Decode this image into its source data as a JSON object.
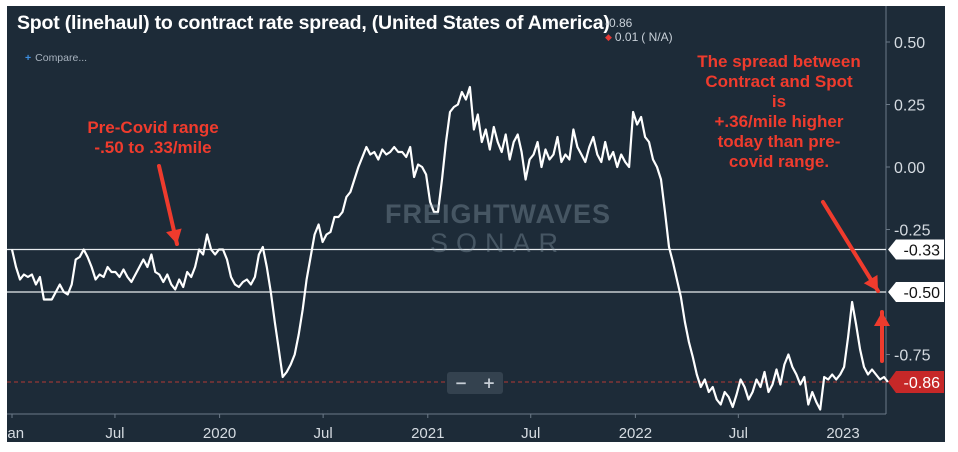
{
  "title": "Spot (linehaul) to contract rate spread, (United States of America)",
  "last_value": "-0.86",
  "change": "0.01",
  "change_pct": "( N/A)",
  "compare_label": "Compare...",
  "watermark": {
    "line1": "FREIGHTWAVES",
    "line2": "SONAR"
  },
  "zoom": {
    "minus": "−",
    "plus": "+"
  },
  "annotations": {
    "left": [
      "Pre-Covid range",
      "-.50 to .33/mile"
    ],
    "right": [
      "The spread between",
      "Contract and Spot",
      "is",
      "+.36/mile higher",
      "today than pre-",
      "covid range."
    ]
  },
  "colors": {
    "background": "#1d2b38",
    "line": "#ffffff",
    "annotation": "#ef3b2d",
    "last_value_tag": "#c62828"
  },
  "chart_data": {
    "type": "line",
    "title": "Spot (linehaul) to contract rate spread, (United States of America)",
    "xlabel": "",
    "ylabel": "",
    "x_ticks": [
      "Jan",
      "Jul",
      "2020",
      "Jul",
      "2021",
      "Jul",
      "2022",
      "Jul",
      "2023"
    ],
    "x_range": [
      "2019-01-01",
      "2023-05-15"
    ],
    "y_ticks": [
      "0.50",
      "0.25",
      "0.00",
      "-0.25",
      "-0.75"
    ],
    "ylim": [
      -1.0,
      0.6
    ],
    "grid": false,
    "reference_lines": [
      {
        "value": -0.33,
        "label": "-0.33"
      },
      {
        "value": -0.5,
        "label": "-0.50"
      }
    ],
    "last_value_line": {
      "value": -0.86,
      "label": "-0.86"
    },
    "series": [
      {
        "values": [
          [
            "2019-01-01",
            -0.33
          ],
          [
            "2019-01-08",
            -0.4
          ],
          [
            "2019-01-15",
            -0.45
          ],
          [
            "2019-01-22",
            -0.43
          ],
          [
            "2019-01-29",
            -0.44
          ],
          [
            "2019-02-05",
            -0.43
          ],
          [
            "2019-02-12",
            -0.47
          ],
          [
            "2019-02-19",
            -0.44
          ],
          [
            "2019-02-26",
            -0.53
          ],
          [
            "2019-03-05",
            -0.53
          ],
          [
            "2019-03-12",
            -0.53
          ],
          [
            "2019-03-19",
            -0.5
          ],
          [
            "2019-03-26",
            -0.47
          ],
          [
            "2019-04-02",
            -0.5
          ],
          [
            "2019-04-09",
            -0.51
          ],
          [
            "2019-04-16",
            -0.47
          ],
          [
            "2019-04-23",
            -0.37
          ],
          [
            "2019-04-30",
            -0.36
          ],
          [
            "2019-05-07",
            -0.33
          ],
          [
            "2019-05-14",
            -0.36
          ],
          [
            "2019-05-21",
            -0.4
          ],
          [
            "2019-05-28",
            -0.45
          ],
          [
            "2019-06-04",
            -0.43
          ],
          [
            "2019-06-11",
            -0.44
          ],
          [
            "2019-06-18",
            -0.4
          ],
          [
            "2019-06-25",
            -0.42
          ],
          [
            "2019-07-02",
            -0.42
          ],
          [
            "2019-07-09",
            -0.44
          ],
          [
            "2019-07-16",
            -0.41
          ],
          [
            "2019-07-23",
            -0.44
          ],
          [
            "2019-07-30",
            -0.46
          ],
          [
            "2019-08-06",
            -0.43
          ],
          [
            "2019-08-13",
            -0.4
          ],
          [
            "2019-08-20",
            -0.37
          ],
          [
            "2019-08-27",
            -0.4
          ],
          [
            "2019-09-03",
            -0.35
          ],
          [
            "2019-09-10",
            -0.42
          ],
          [
            "2019-09-17",
            -0.43
          ],
          [
            "2019-09-24",
            -0.46
          ],
          [
            "2019-10-01",
            -0.43
          ],
          [
            "2019-10-08",
            -0.47
          ],
          [
            "2019-10-15",
            -0.49
          ],
          [
            "2019-10-22",
            -0.45
          ],
          [
            "2019-10-29",
            -0.48
          ],
          [
            "2019-11-05",
            -0.42
          ],
          [
            "2019-11-12",
            -0.44
          ],
          [
            "2019-11-19",
            -0.4
          ],
          [
            "2019-11-26",
            -0.33
          ],
          [
            "2019-12-03",
            -0.35
          ],
          [
            "2019-12-10",
            -0.27
          ],
          [
            "2019-12-17",
            -0.33
          ],
          [
            "2019-12-24",
            -0.35
          ],
          [
            "2019-12-31",
            -0.33
          ],
          [
            "2020-01-07",
            -0.33
          ],
          [
            "2020-01-14",
            -0.37
          ],
          [
            "2020-01-21",
            -0.44
          ],
          [
            "2020-01-28",
            -0.47
          ],
          [
            "2020-02-04",
            -0.48
          ],
          [
            "2020-02-11",
            -0.46
          ],
          [
            "2020-02-18",
            -0.45
          ],
          [
            "2020-02-25",
            -0.47
          ],
          [
            "2020-03-03",
            -0.44
          ],
          [
            "2020-03-10",
            -0.35
          ],
          [
            "2020-03-17",
            -0.32
          ],
          [
            "2020-03-24",
            -0.4
          ],
          [
            "2020-03-31",
            -0.5
          ],
          [
            "2020-04-07",
            -0.62
          ],
          [
            "2020-04-14",
            -0.73
          ],
          [
            "2020-04-21",
            -0.84
          ],
          [
            "2020-04-28",
            -0.82
          ],
          [
            "2020-05-05",
            -0.79
          ],
          [
            "2020-05-12",
            -0.75
          ],
          [
            "2020-05-19",
            -0.67
          ],
          [
            "2020-05-26",
            -0.57
          ],
          [
            "2020-06-02",
            -0.45
          ],
          [
            "2020-06-09",
            -0.36
          ],
          [
            "2020-06-16",
            -0.27
          ],
          [
            "2020-06-23",
            -0.23
          ],
          [
            "2020-06-30",
            -0.3
          ],
          [
            "2020-07-07",
            -0.27
          ],
          [
            "2020-07-14",
            -0.26
          ],
          [
            "2020-07-21",
            -0.2
          ],
          [
            "2020-07-28",
            -0.2
          ],
          [
            "2020-08-04",
            -0.18
          ],
          [
            "2020-08-11",
            -0.12
          ],
          [
            "2020-08-18",
            -0.1
          ],
          [
            "2020-08-25",
            -0.05
          ],
          [
            "2020-09-01",
            0.0
          ],
          [
            "2020-09-08",
            0.04
          ],
          [
            "2020-09-15",
            0.08
          ],
          [
            "2020-09-22",
            0.05
          ],
          [
            "2020-09-29",
            0.06
          ],
          [
            "2020-10-06",
            0.03
          ],
          [
            "2020-10-13",
            0.07
          ],
          [
            "2020-10-20",
            0.05
          ],
          [
            "2020-10-27",
            0.06
          ],
          [
            "2020-11-03",
            0.08
          ],
          [
            "2020-11-10",
            0.06
          ],
          [
            "2020-11-17",
            0.06
          ],
          [
            "2020-11-24",
            0.04
          ],
          [
            "2020-12-01",
            0.08
          ],
          [
            "2020-12-08",
            -0.04
          ],
          [
            "2020-12-15",
            0.01
          ],
          [
            "2020-12-22",
            0.0
          ],
          [
            "2020-12-29",
            -0.03
          ],
          [
            "2021-01-05",
            -0.14
          ],
          [
            "2021-01-12",
            -0.18
          ],
          [
            "2021-01-19",
            -0.18
          ],
          [
            "2021-01-26",
            -0.05
          ],
          [
            "2021-02-02",
            0.1
          ],
          [
            "2021-02-09",
            0.22
          ],
          [
            "2021-02-16",
            0.24
          ],
          [
            "2021-02-23",
            0.25
          ],
          [
            "2021-03-02",
            0.3
          ],
          [
            "2021-03-09",
            0.27
          ],
          [
            "2021-03-16",
            0.32
          ],
          [
            "2021-03-23",
            0.15
          ],
          [
            "2021-03-30",
            0.21
          ],
          [
            "2021-04-06",
            0.1
          ],
          [
            "2021-04-13",
            0.15
          ],
          [
            "2021-04-20",
            0.07
          ],
          [
            "2021-04-27",
            0.16
          ],
          [
            "2021-05-04",
            0.1
          ],
          [
            "2021-05-11",
            0.06
          ],
          [
            "2021-05-18",
            0.13
          ],
          [
            "2021-05-25",
            0.03
          ],
          [
            "2021-06-01",
            0.1
          ],
          [
            "2021-06-08",
            0.13
          ],
          [
            "2021-06-15",
            0.06
          ],
          [
            "2021-06-22",
            -0.05
          ],
          [
            "2021-06-29",
            0.03
          ],
          [
            "2021-07-06",
            0.05
          ],
          [
            "2021-07-13",
            0.1
          ],
          [
            "2021-07-20",
            0.0
          ],
          [
            "2021-07-27",
            0.07
          ],
          [
            "2021-08-03",
            0.03
          ],
          [
            "2021-08-10",
            0.05
          ],
          [
            "2021-08-17",
            0.12
          ],
          [
            "2021-08-24",
            0.02
          ],
          [
            "2021-08-31",
            0.05
          ],
          [
            "2021-09-07",
            0.03
          ],
          [
            "2021-09-14",
            0.15
          ],
          [
            "2021-09-21",
            0.08
          ],
          [
            "2021-09-28",
            0.05
          ],
          [
            "2021-10-05",
            0.02
          ],
          [
            "2021-10-12",
            0.08
          ],
          [
            "2021-10-19",
            0.12
          ],
          [
            "2021-10-26",
            0.05
          ],
          [
            "2021-11-02",
            0.02
          ],
          [
            "2021-11-09",
            0.1
          ],
          [
            "2021-11-16",
            0.03
          ],
          [
            "2021-11-23",
            0.06
          ],
          [
            "2021-11-30",
            0.0
          ],
          [
            "2021-12-07",
            0.05
          ],
          [
            "2021-12-14",
            0.02
          ],
          [
            "2021-12-21",
            0.0
          ],
          [
            "2021-12-28",
            0.22
          ],
          [
            "2022-01-04",
            0.17
          ],
          [
            "2022-01-11",
            0.2
          ],
          [
            "2022-01-18",
            0.12
          ],
          [
            "2022-01-25",
            0.1
          ],
          [
            "2022-02-01",
            0.03
          ],
          [
            "2022-02-08",
            0.0
          ],
          [
            "2022-02-15",
            -0.05
          ],
          [
            "2022-02-22",
            -0.18
          ],
          [
            "2022-03-01",
            -0.32
          ],
          [
            "2022-03-08",
            -0.38
          ],
          [
            "2022-03-15",
            -0.45
          ],
          [
            "2022-03-22",
            -0.52
          ],
          [
            "2022-03-29",
            -0.62
          ],
          [
            "2022-04-05",
            -0.7
          ],
          [
            "2022-04-12",
            -0.76
          ],
          [
            "2022-04-19",
            -0.83
          ],
          [
            "2022-04-26",
            -0.88
          ],
          [
            "2022-05-03",
            -0.85
          ],
          [
            "2022-05-10",
            -0.9
          ],
          [
            "2022-05-17",
            -0.88
          ],
          [
            "2022-05-24",
            -0.93
          ],
          [
            "2022-05-31",
            -0.95
          ],
          [
            "2022-06-07",
            -0.9
          ],
          [
            "2022-06-14",
            -0.92
          ],
          [
            "2022-06-21",
            -0.96
          ],
          [
            "2022-06-28",
            -0.91
          ],
          [
            "2022-07-05",
            -0.85
          ],
          [
            "2022-07-12",
            -0.88
          ],
          [
            "2022-07-19",
            -0.93
          ],
          [
            "2022-07-26",
            -0.9
          ],
          [
            "2022-08-02",
            -0.85
          ],
          [
            "2022-08-09",
            -0.88
          ],
          [
            "2022-08-16",
            -0.82
          ],
          [
            "2022-08-23",
            -0.9
          ],
          [
            "2022-08-30",
            -0.87
          ],
          [
            "2022-09-06",
            -0.81
          ],
          [
            "2022-09-13",
            -0.87
          ],
          [
            "2022-09-20",
            -0.79
          ],
          [
            "2022-09-27",
            -0.75
          ],
          [
            "2022-10-04",
            -0.8
          ],
          [
            "2022-10-11",
            -0.83
          ],
          [
            "2022-10-18",
            -0.87
          ],
          [
            "2022-10-25",
            -0.84
          ],
          [
            "2022-11-01",
            -0.95
          ],
          [
            "2022-11-08",
            -0.9
          ],
          [
            "2022-11-15",
            -0.94
          ],
          [
            "2022-11-22",
            -0.97
          ],
          [
            "2022-11-29",
            -0.84
          ],
          [
            "2022-12-06",
            -0.85
          ],
          [
            "2022-12-13",
            -0.83
          ],
          [
            "2022-12-20",
            -0.85
          ],
          [
            "2022-12-27",
            -0.83
          ],
          [
            "2023-01-03",
            -0.8
          ],
          [
            "2023-01-10",
            -0.68
          ],
          [
            "2023-01-17",
            -0.54
          ],
          [
            "2023-01-24",
            -0.63
          ],
          [
            "2023-01-31",
            -0.73
          ],
          [
            "2023-02-07",
            -0.8
          ],
          [
            "2023-02-14",
            -0.83
          ],
          [
            "2023-02-21",
            -0.81
          ],
          [
            "2023-02-28",
            -0.83
          ],
          [
            "2023-03-07",
            -0.85
          ],
          [
            "2023-03-14",
            -0.84
          ],
          [
            "2023-03-21",
            -0.86
          ]
        ]
      }
    ]
  }
}
